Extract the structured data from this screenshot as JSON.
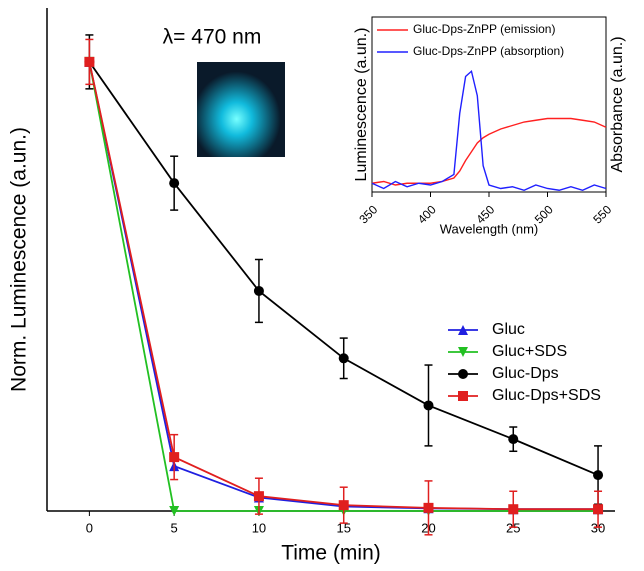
{
  "chart_data": [
    {
      "type": "line",
      "xlabel": "Time (min)",
      "ylabel": "Norm. Luminescence (a.un.)",
      "annotation": "λ= 470 nm",
      "x": [
        0,
        5,
        10,
        15,
        20,
        25,
        30
      ],
      "xlim": [
        -2.5,
        31
      ],
      "xticks": [
        0,
        5,
        10,
        15,
        20,
        25,
        30
      ],
      "ylim": [
        0,
        1.12
      ],
      "legend": "right",
      "series": [
        {
          "name": "Gluc",
          "color": "#1f1fe0",
          "marker": "triangle-up",
          "values": [
            1,
            0.1,
            0.03,
            0.01,
            0.006,
            0.004,
            0.004
          ]
        },
        {
          "name": "Gluc+SDS",
          "color": "#22c022",
          "marker": "triangle-down",
          "values": [
            1,
            0,
            0,
            0,
            0,
            0,
            0
          ]
        },
        {
          "name": "Gluc-Dps",
          "color": "#000000",
          "marker": "circle",
          "values": [
            1,
            0.73,
            0.49,
            0.34,
            0.235,
            0.16,
            0.08
          ],
          "errors": [
            0.06,
            0.06,
            0.07,
            0.045,
            0.09,
            0.027,
            0.065
          ]
        },
        {
          "name": "Gluc-Dps+SDS",
          "color": "#e01f1f",
          "marker": "square",
          "values": [
            1,
            0.12,
            0.033,
            0.013,
            0.007,
            0.004,
            0.004
          ],
          "errors": [
            0.05,
            0.05,
            0.04,
            0.04,
            0.06,
            0.04,
            0.04
          ]
        }
      ]
    },
    {
      "type": "line",
      "xlabel": "Wavelength (nm)",
      "ylabel": "Luminescence (a.un.)",
      "y2label": "Absorbance (a.un.)",
      "x": [
        350,
        360,
        370,
        380,
        390,
        400,
        410,
        420,
        425,
        430,
        435,
        440,
        445,
        450,
        460,
        470,
        480,
        490,
        500,
        510,
        520,
        530,
        540,
        550
      ],
      "xlim": [
        350,
        550
      ],
      "xticks": [
        350,
        400,
        450,
        500,
        550
      ],
      "ylim": [
        0,
        1
      ],
      "y2lim": [
        0,
        1
      ],
      "legend": "top",
      "series": [
        {
          "name": "Gluc-Dps-ZnPP (emission)",
          "color": "#ff2020",
          "values": [
            0.05,
            0.06,
            0.04,
            0.05,
            0.05,
            0.05,
            0.06,
            0.08,
            0.12,
            0.18,
            0.23,
            0.28,
            0.31,
            0.33,
            0.36,
            0.38,
            0.4,
            0.41,
            0.42,
            0.42,
            0.42,
            0.41,
            0.4,
            0.37
          ]
        },
        {
          "name": "Gluc-Dps-ZnPP (absorption)",
          "color": "#2020ff",
          "axis": "y2",
          "values": [
            0.05,
            0.02,
            0.06,
            0.03,
            0.05,
            0.04,
            0.06,
            0.1,
            0.45,
            0.66,
            0.69,
            0.55,
            0.15,
            0.04,
            0.02,
            0.03,
            0.01,
            0.04,
            0.02,
            0.01,
            0.03,
            0.01,
            0.04,
            0.02
          ]
        }
      ]
    }
  ]
}
